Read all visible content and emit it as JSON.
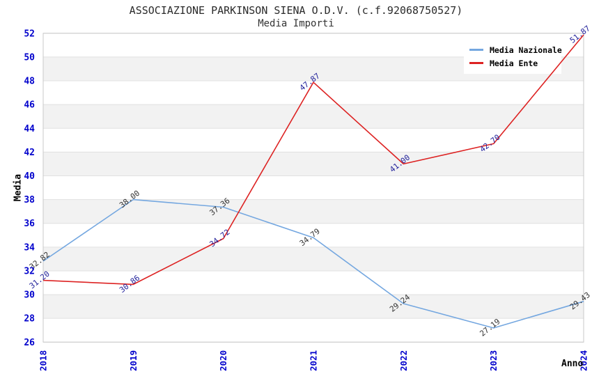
{
  "title": "ASSOCIAZIONE PARKINSON SIENA O.D.V. (c.f.92068750527)",
  "subtitle": "Media Importi",
  "chart_data": {
    "type": "line",
    "x": [
      "2018",
      "2019",
      "2020",
      "2021",
      "2022",
      "2023",
      "2024"
    ],
    "xlabel": "Anno",
    "ylabel": "Media",
    "ylim": [
      26,
      52
    ],
    "ytick_step": 2,
    "grid": "horizontal-bands",
    "legend_position": "top-right",
    "series": [
      {
        "name": "Media Nazionale",
        "color": "#74a7e0",
        "label_color": "#333333",
        "values": [
          32.82,
          38.0,
          37.36,
          34.79,
          29.24,
          27.19,
          29.43
        ],
        "labels": [
          "32.82",
          "38.00",
          "37.36",
          "34.79",
          "29.24",
          "27.19",
          "29.43"
        ]
      },
      {
        "name": "Media Ente",
        "color": "#dd2222",
        "label_color": "#22229b",
        "values": [
          31.2,
          30.86,
          34.72,
          47.87,
          41.0,
          42.7,
          51.87
        ],
        "labels": [
          "31.20",
          "30.86",
          "34.72",
          "47.87",
          "41.00",
          "42.70",
          "51.87"
        ]
      }
    ],
    "style": {
      "tick_label_color": "#0000cc",
      "band_color": "#f2f2f2",
      "gridline_color": "#e0e0e0",
      "border_color": "#c9c9c9",
      "background": "#ffffff"
    }
  }
}
